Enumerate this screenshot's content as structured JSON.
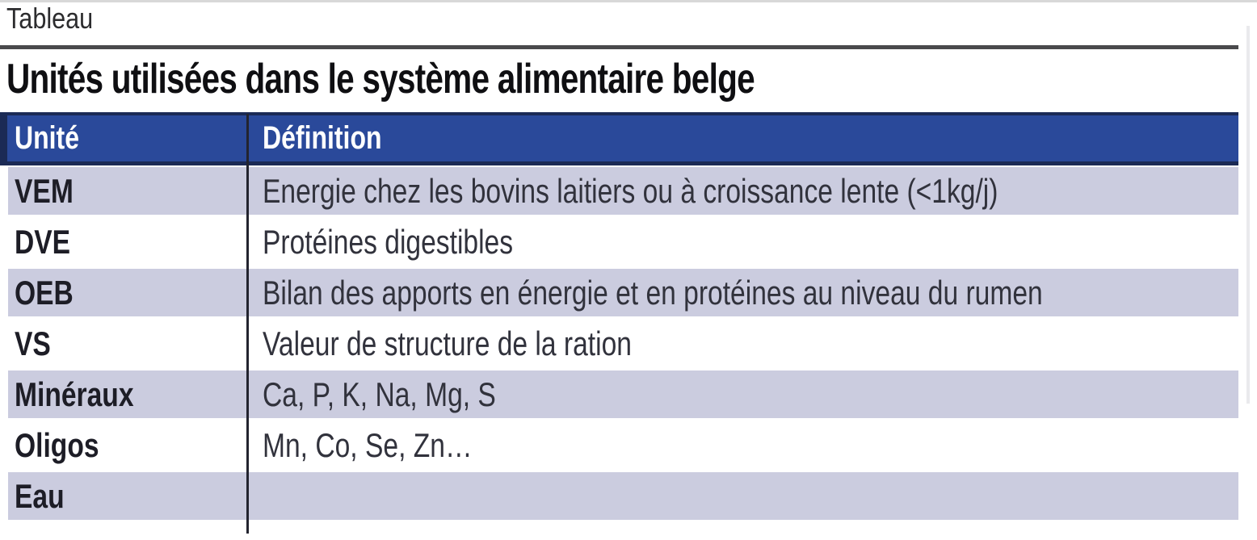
{
  "page": {
    "label": "Tableau"
  },
  "table": {
    "title": "Unités utilisées dans le système alimentaire belge",
    "columns": [
      "Unité",
      "Définition"
    ],
    "rows": [
      {
        "unit": "VEM",
        "definition": "Energie chez les bovins laitiers ou à croissance lente (<1kg/j)"
      },
      {
        "unit": "DVE",
        "definition": "Protéines digestibles"
      },
      {
        "unit": "OEB",
        "definition": "Bilan des apports en énergie et en protéines au niveau du rumen"
      },
      {
        "unit": "VS",
        "definition": "Valeur de structure de la ration"
      },
      {
        "unit": "Minéraux",
        "definition": "Ca, P, K, Na, Mg, S"
      },
      {
        "unit": "Oligos",
        "definition": "Mn, Co, Se, Zn…"
      },
      {
        "unit": "Eau",
        "definition": ""
      }
    ]
  },
  "colors": {
    "header_bg": "#2a499a",
    "header_border": "#1b2a55",
    "row_alt_bg": "#cbccdf",
    "column_divider": "#23242f",
    "rule": "#4a4a4c",
    "header_text": "#ffffff",
    "unit_text": "#1d1d26",
    "definition_text": "#31323c"
  }
}
